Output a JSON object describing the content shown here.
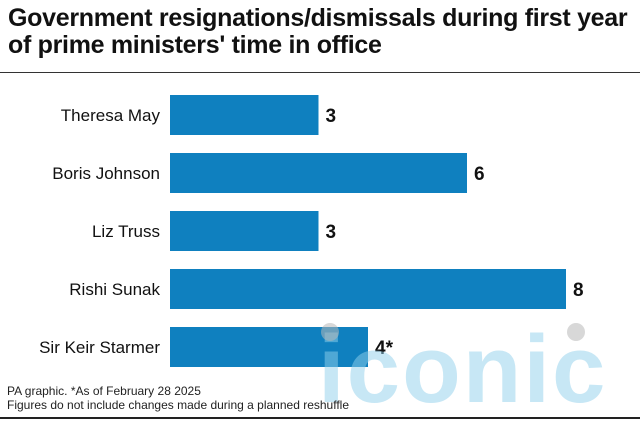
{
  "title": "Government resignations/dismissals during first year of prime ministers' time in office",
  "footnote": {
    "line1": "PA graphic. *As of February 28 2025",
    "line2": "Figures do not include changes made during a planned reshuffle"
  },
  "watermark": {
    "text": "iconic",
    "color": "#8fd0ec",
    "dot_color": "#b8b8b8"
  },
  "colors": {
    "bar": "#0f80bf",
    "text": "#111111"
  },
  "chart_data": {
    "type": "bar",
    "orientation": "horizontal",
    "title": "Government resignations/dismissals during first year of prime ministers' time in office",
    "categories": [
      "Theresa May",
      "Boris Johnson",
      "Liz Truss",
      "Rishi Sunak",
      "Sir Keir Starmer"
    ],
    "values": [
      3,
      6,
      3,
      8,
      4
    ],
    "value_labels": [
      "3",
      "6",
      "3",
      "8",
      "4*"
    ],
    "xlim": [
      0,
      8
    ],
    "grid": false,
    "legend": "none"
  }
}
